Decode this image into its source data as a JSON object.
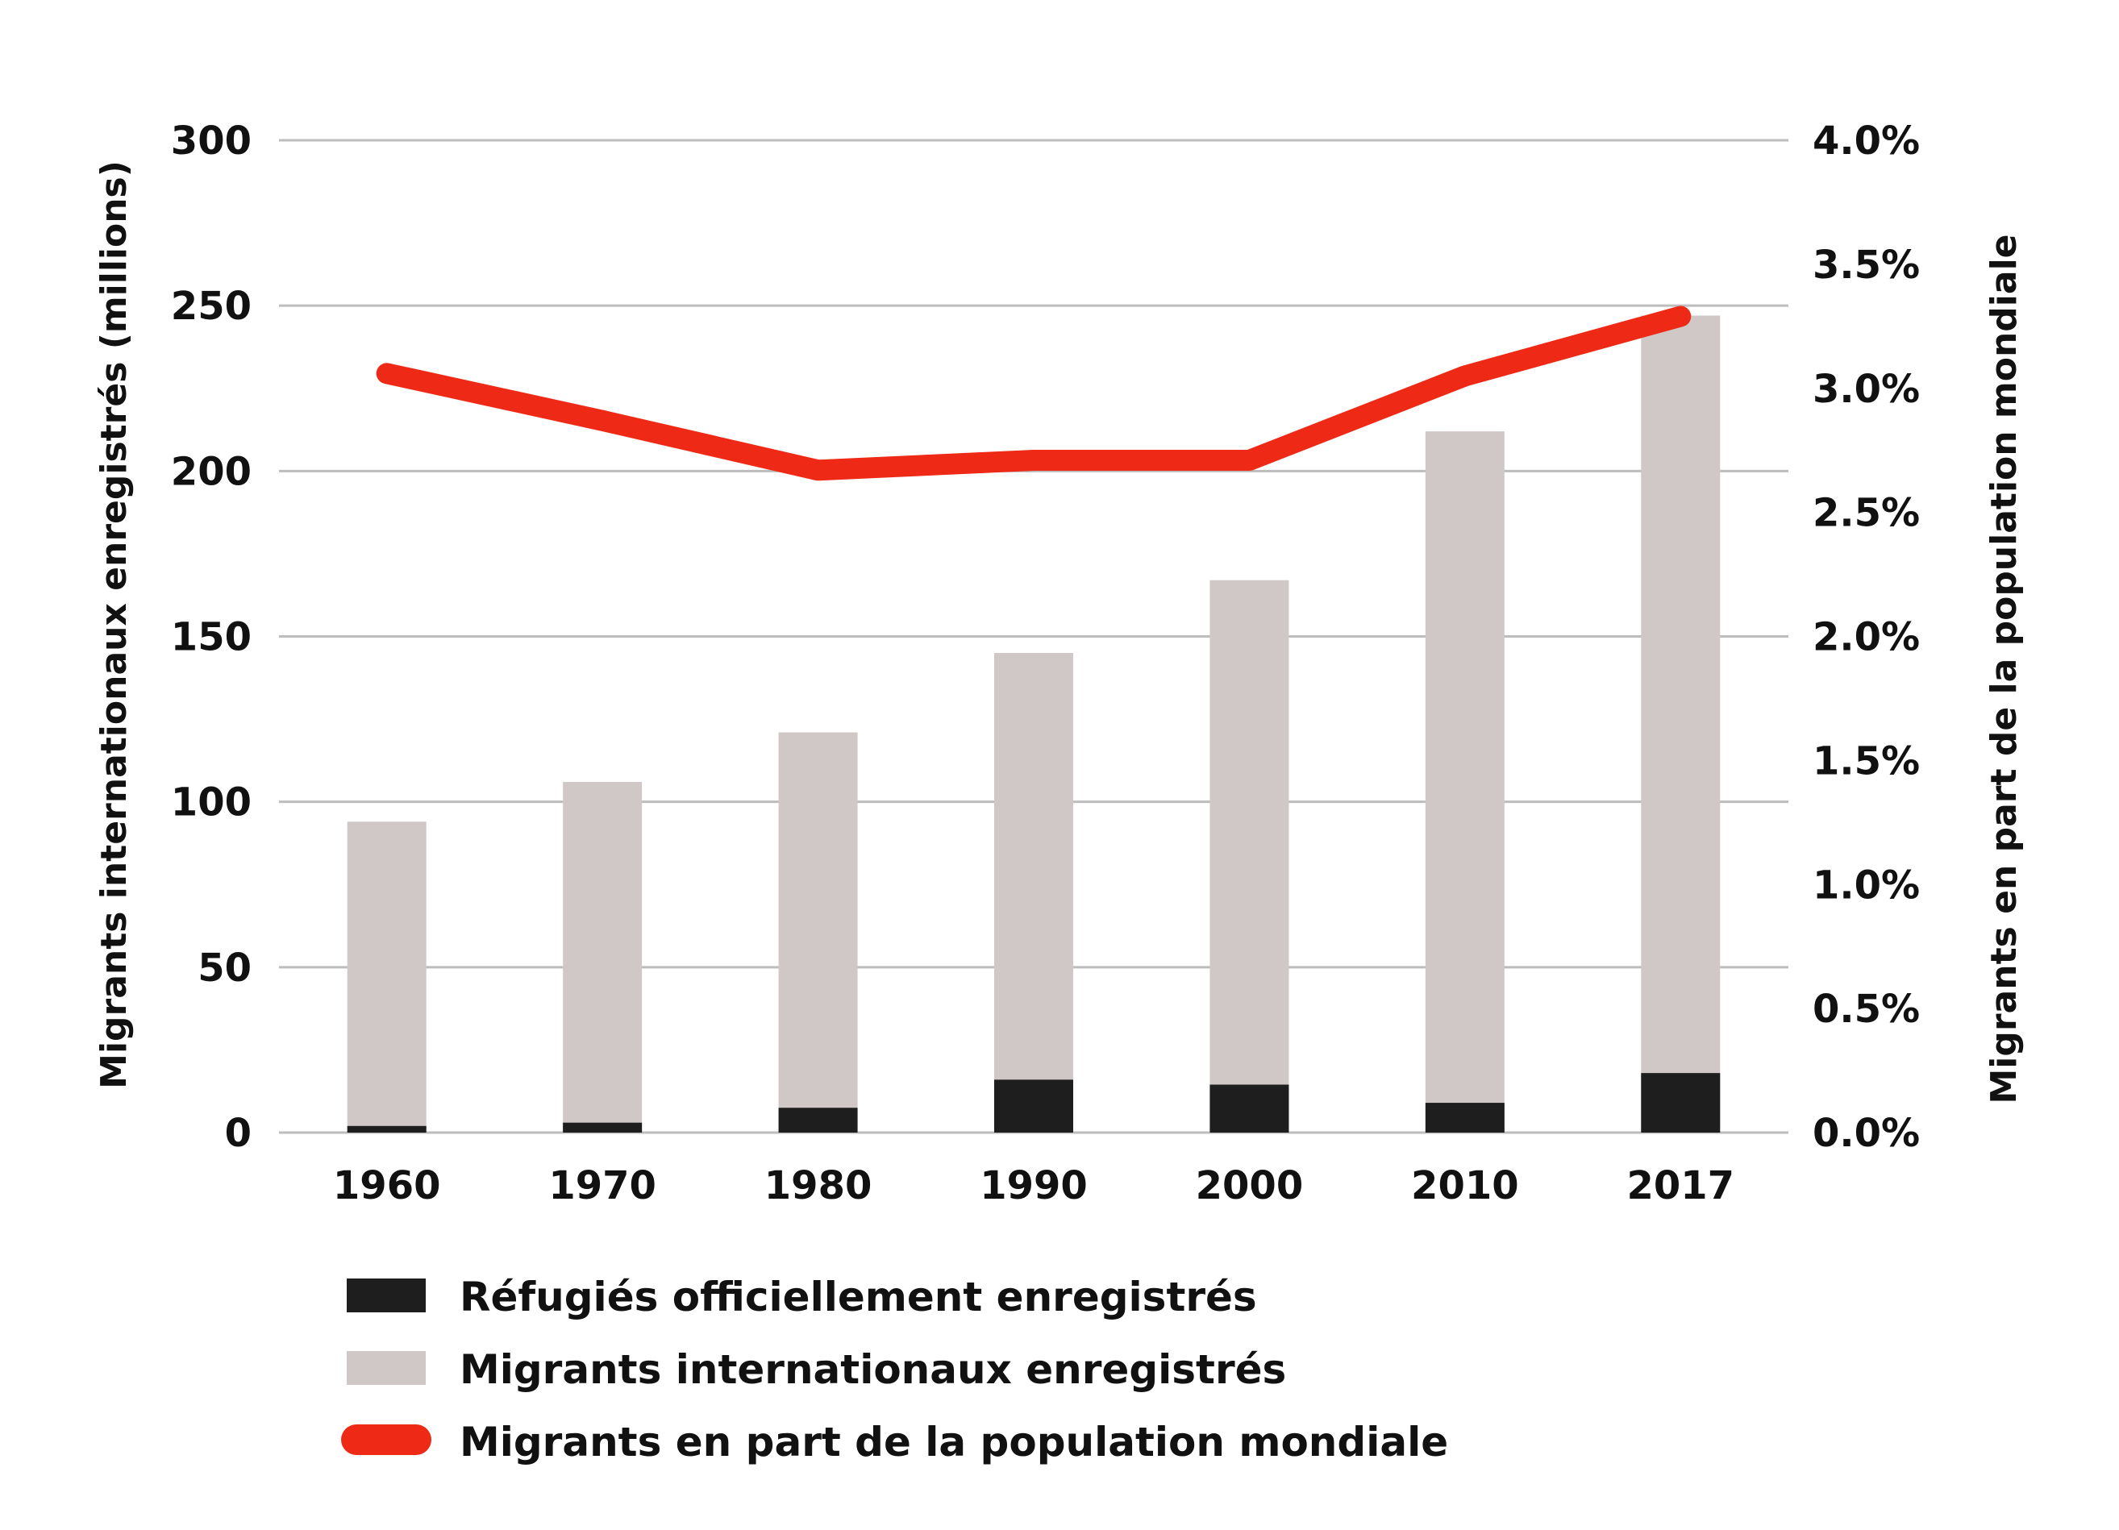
{
  "chart_data": {
    "type": "bar",
    "title": "",
    "categories": [
      "1960",
      "1970",
      "1980",
      "1990",
      "2000",
      "2010",
      "2017"
    ],
    "series": [
      {
        "name": "Réfugiés officiellement enregistrés",
        "kind": "bar",
        "axis": "left",
        "color": "#1e1e1e",
        "values": [
          2,
          3,
          7.5,
          16,
          14.5,
          9,
          18
        ]
      },
      {
        "name": "Migrants internationaux enregistrés",
        "kind": "bar",
        "axis": "left",
        "color": "#d0c8c6",
        "values": [
          94,
          106,
          121,
          145,
          167,
          212,
          247
        ]
      },
      {
        "name": "Migrants en part de la population mondiale",
        "kind": "line",
        "axis": "right",
        "color": "#ee2a17",
        "values": [
          3.06,
          2.87,
          2.67,
          2.71,
          2.71,
          3.05,
          3.29
        ]
      }
    ],
    "y_left": {
      "label": "Migrants internationaux enregistrés (millions)",
      "range": [
        0,
        300
      ],
      "ticks": [
        "0",
        "50",
        "100",
        "150",
        "200",
        "250",
        "300"
      ]
    },
    "y_right": {
      "label": "Migrants en part de la population mondiale",
      "range": [
        0,
        4
      ],
      "ticks": [
        "0.0%",
        "0.5%",
        "1.0%",
        "1.5%",
        "2.0%",
        "2.5%",
        "3.0%",
        "3.5%",
        "4.0%"
      ]
    },
    "grid": true,
    "legend_position": "bottom-left",
    "colors": {
      "grid": "#bdbdbd",
      "text": "#111111"
    }
  }
}
